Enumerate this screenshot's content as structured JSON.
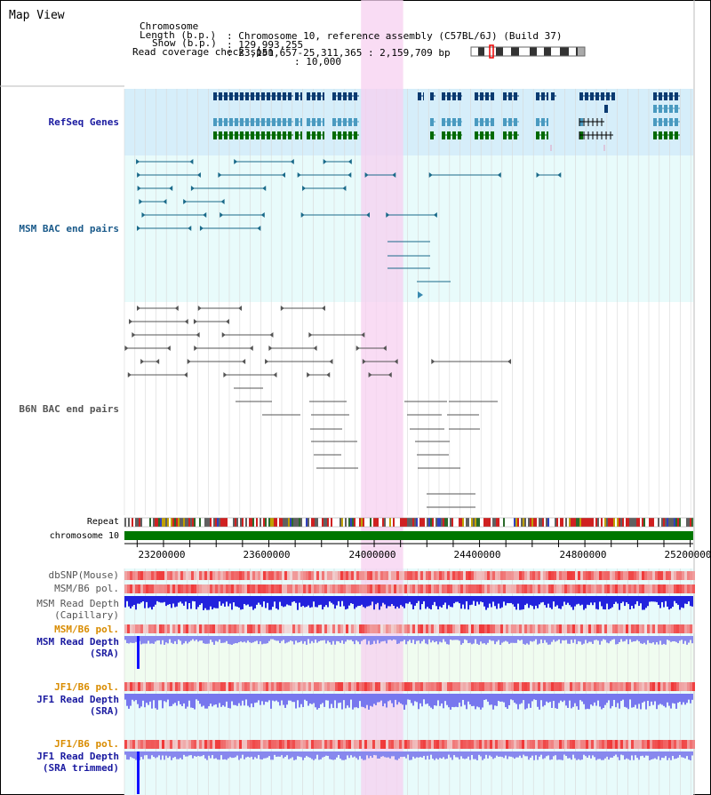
{
  "app": {
    "title": "Map View"
  },
  "header": {
    "rows": [
      {
        "label": "Chromosome",
        "value": ": Chromosome 10, reference assembly (C57BL/6J) (Build 37)"
      },
      {
        "label": "Length (b.p.)",
        "value": ": 129,993,255"
      },
      {
        "label": "Show (b.p.)",
        "value": ": 23,151,657-25,311,365 : 2,159,709 bp"
      },
      {
        "label": "Read coverage check span",
        "value": ": 10,000"
      }
    ]
  },
  "tracks": {
    "refseq": {
      "label": "RefSeq Genes",
      "color": "#1a1aa0"
    },
    "msm_bac": {
      "label": "MSM BAC end pairs",
      "color": "#1a5a8a"
    },
    "b6n_bac": {
      "label": "B6N BAC end pairs",
      "color": "#555555"
    },
    "repeat": {
      "label": "Repeat"
    },
    "chromosome": {
      "label": "chromosome 10",
      "color": "#006600"
    },
    "dbsnp": {
      "label": "dbSNP(Mouse)",
      "color": "#555555"
    },
    "msm_pol1": {
      "label": "MSM/B6 pol.",
      "color": "#555555"
    },
    "msm_depth_cap": {
      "label_line1": "MSM Read Depth",
      "label_line2": "(Capillary)",
      "color": "#555555"
    },
    "msm_pol2": {
      "label": "MSM/B6 pol.",
      "color": "#d98c00"
    },
    "msm_depth_sra": {
      "label_line1": "MSM Read Depth",
      "label_line2": "(SRA)",
      "color": "#1a1aa0"
    },
    "jf1_pol1": {
      "label": "JF1/B6 pol.",
      "color": "#d98c00"
    },
    "jf1_depth_sra": {
      "label_line1": "JF1 Read Depth",
      "label_line2": "(SRA)",
      "color": "#1a1aa0"
    },
    "jf1_pol2": {
      "label": "JF1/B6 pol.",
      "color": "#d98c00"
    },
    "jf1_depth_trim": {
      "label_line1": "JF1 Read Depth",
      "label_line2": "(SRA trimmed)",
      "color": "#1a1aa0"
    }
  },
  "axis": {
    "ticks": [
      {
        "label": "23200000",
        "value": 23200000
      },
      {
        "label": "23600000",
        "value": 23600000
      },
      {
        "label": "24000000",
        "value": 24000000
      },
      {
        "label": "24400000",
        "value": 24400000
      },
      {
        "label": "24800000",
        "value": 24800000
      },
      {
        "label": "25200000",
        "value": 25200000
      }
    ],
    "range": [
      23151657,
      25311365
    ]
  },
  "highlight": {
    "range": [
      24050000,
      24210000
    ],
    "color": "#f7d0f0"
  },
  "colors": {
    "refseq_bg": "#d6eefa",
    "msm_bg": "#e8fbfb",
    "depth_blue": "#2222dd",
    "depth_light": "#8888ee",
    "pol_red": "#f04040",
    "chrom_green": "#007700"
  }
}
